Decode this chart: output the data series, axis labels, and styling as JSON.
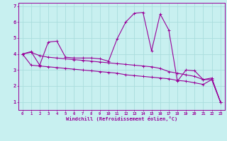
{
  "xlabel": "Windchill (Refroidissement éolien,°C)",
  "background_color": "#c8f0f0",
  "line_color": "#990099",
  "grid_color": "#aadddd",
  "xlim": [
    -0.5,
    23.5
  ],
  "ylim": [
    0.5,
    7.2
  ],
  "xticks": [
    0,
    1,
    2,
    3,
    4,
    5,
    6,
    7,
    8,
    9,
    10,
    11,
    12,
    13,
    14,
    15,
    16,
    17,
    18,
    19,
    20,
    21,
    22,
    23
  ],
  "yticks": [
    1,
    2,
    3,
    4,
    5,
    6,
    7
  ],
  "series_volatile_x": [
    0,
    1,
    2,
    3,
    4,
    5,
    6,
    7,
    8,
    9,
    10,
    11,
    12,
    13,
    14,
    15,
    16,
    17,
    18,
    19,
    20,
    21,
    22,
    23
  ],
  "series_volatile_y": [
    4.0,
    4.15,
    3.3,
    4.75,
    4.8,
    3.8,
    3.75,
    3.75,
    3.75,
    3.7,
    3.55,
    4.95,
    6.0,
    6.55,
    6.6,
    4.2,
    6.5,
    5.5,
    2.3,
    3.0,
    2.95,
    2.4,
    2.5,
    1.0
  ],
  "series_mid_x": [
    0,
    1,
    2,
    3,
    4,
    5,
    6,
    7,
    8,
    9,
    10,
    11,
    12,
    13,
    14,
    15,
    16,
    17,
    18,
    19,
    20,
    21,
    22,
    23
  ],
  "series_mid_y": [
    4.0,
    4.1,
    3.9,
    3.8,
    3.75,
    3.7,
    3.65,
    3.6,
    3.55,
    3.5,
    3.45,
    3.4,
    3.35,
    3.3,
    3.25,
    3.2,
    3.1,
    2.9,
    2.8,
    2.7,
    2.6,
    2.4,
    2.4,
    1.0
  ],
  "series_low_x": [
    0,
    1,
    2,
    3,
    4,
    5,
    6,
    7,
    8,
    9,
    10,
    11,
    12,
    13,
    14,
    15,
    16,
    17,
    18,
    19,
    20,
    21,
    22,
    23
  ],
  "series_low_y": [
    4.0,
    3.3,
    3.25,
    3.2,
    3.15,
    3.1,
    3.05,
    3.0,
    2.95,
    2.9,
    2.85,
    2.8,
    2.7,
    2.65,
    2.6,
    2.55,
    2.5,
    2.45,
    2.35,
    2.3,
    2.2,
    2.1,
    2.4,
    1.0
  ]
}
